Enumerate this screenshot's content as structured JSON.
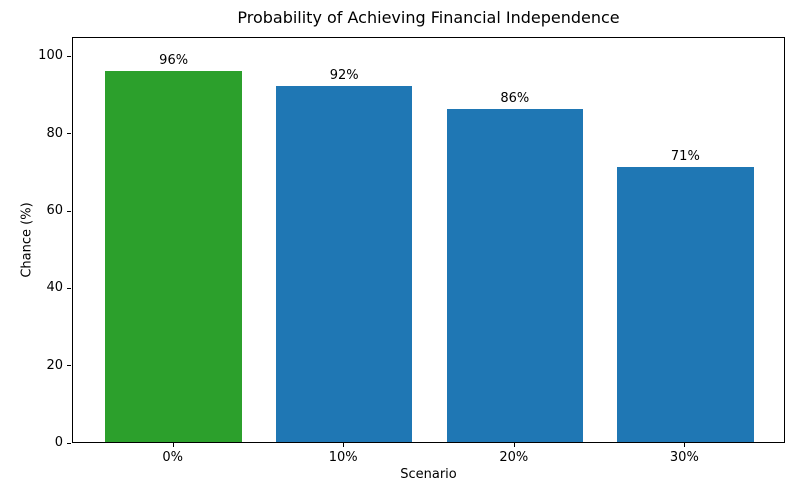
{
  "chart_data": {
    "type": "bar",
    "title": "Probability of Achieving Financial Independence",
    "xlabel": "Scenario",
    "ylabel": "Chance (%)",
    "categories": [
      "0%",
      "10%",
      "20%",
      "30%"
    ],
    "values": [
      96,
      92,
      86,
      71
    ],
    "value_labels": [
      "96%",
      "92%",
      "86%",
      "71%"
    ],
    "bar_colors": [
      "#2ca02c",
      "#1f77b4",
      "#1f77b4",
      "#1f77b4"
    ],
    "ylim": [
      0,
      105
    ],
    "yticks": [
      0,
      20,
      40,
      60,
      80,
      100
    ],
    "ytick_labels": [
      "0",
      "20",
      "40",
      "60",
      "80",
      "100"
    ],
    "bar_width_units": 0.8,
    "grid": false,
    "legend": null
  }
}
